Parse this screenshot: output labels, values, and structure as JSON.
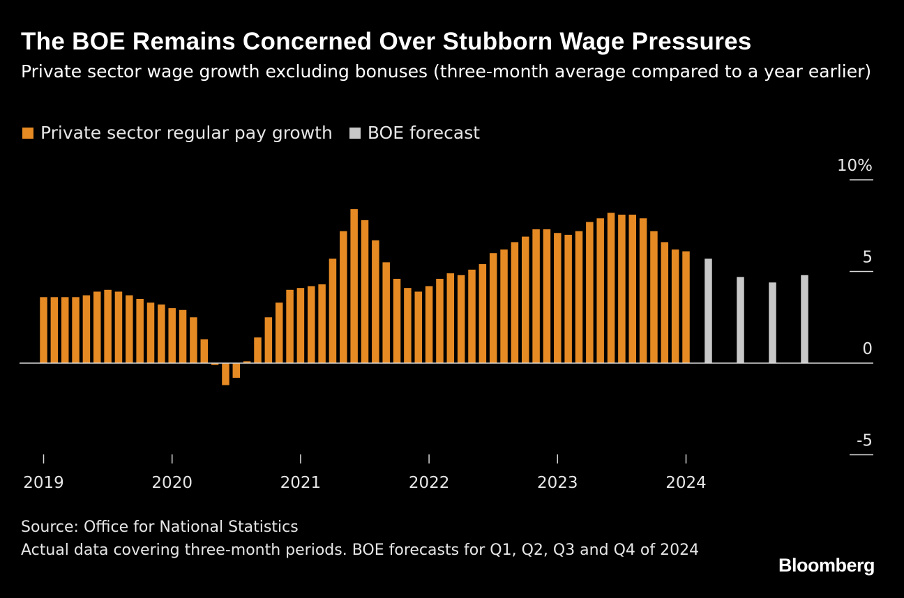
{
  "title": "The BOE Remains Concerned Over Stubborn Wage Pressures",
  "subtitle": "Private sector wage growth excluding bonuses (three-month average compared to a year earlier)",
  "legend": [
    {
      "label": "Private sector regular pay growth",
      "color": "#E68A24"
    },
    {
      "label": "BOE forecast",
      "color": "#C8C8C8"
    }
  ],
  "footer": {
    "source": "Source: Office for National Statistics",
    "note": "Actual data covering three-month periods. BOE forecasts for Q1, Q2, Q3 and Q4 of 2024",
    "brand": "Bloomberg"
  },
  "chart_data": {
    "type": "bar",
    "title": "The BOE Remains Concerned Over Stubborn Wage Pressures",
    "ylabel": "%",
    "ylim": [
      -5,
      10
    ],
    "yticks": [
      {
        "value": 10,
        "label": "10%"
      },
      {
        "value": 5,
        "label": "5"
      },
      {
        "value": 0,
        "label": "0"
      },
      {
        "value": -5,
        "label": "-5"
      }
    ],
    "xticks": [
      "2019",
      "2020",
      "2021",
      "2022",
      "2023",
      "2024"
    ],
    "series": [
      {
        "name": "Private sector regular pay growth",
        "color": "#E68A24",
        "start": "2019-01",
        "frequency": "monthly",
        "values": [
          3.6,
          3.6,
          3.6,
          3.6,
          3.7,
          3.9,
          4.0,
          3.9,
          3.7,
          3.5,
          3.3,
          3.2,
          3.0,
          2.9,
          2.5,
          1.3,
          -0.1,
          -1.2,
          -0.8,
          0.1,
          1.4,
          2.5,
          3.3,
          4.0,
          4.1,
          4.2,
          4.3,
          5.7,
          7.2,
          8.4,
          7.8,
          6.7,
          5.5,
          4.6,
          4.1,
          3.9,
          4.2,
          4.6,
          4.9,
          4.8,
          5.1,
          5.4,
          6.0,
          6.2,
          6.6,
          6.9,
          7.3,
          7.3,
          7.1,
          7.0,
          7.2,
          7.7,
          7.9,
          8.2,
          8.1,
          8.1,
          7.9,
          7.2,
          6.6,
          6.2,
          6.1
        ]
      },
      {
        "name": "BOE forecast",
        "color": "#C8C8C8",
        "periods": [
          "Q1 2024",
          "Q2 2024",
          "Q3 2024",
          "Q4 2024"
        ],
        "values": [
          5.7,
          4.7,
          4.4,
          4.8
        ]
      }
    ]
  }
}
